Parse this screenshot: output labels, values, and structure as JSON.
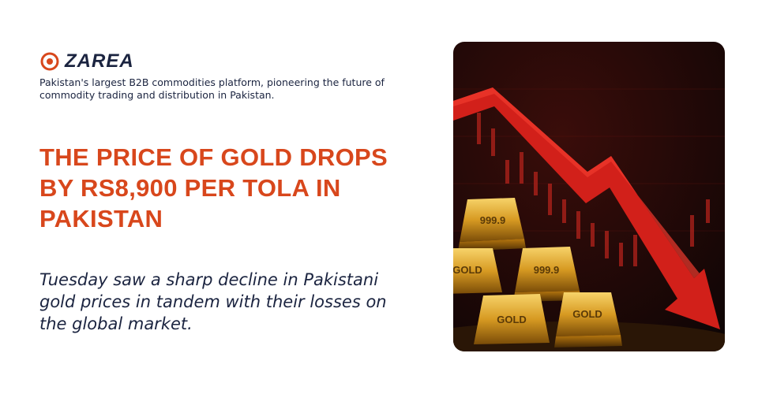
{
  "logo": {
    "name": "ZAREA"
  },
  "tagline": "Pakistan's largest B2B commodities platform, pioneering the future of commodity trading and distribution in Pakistan.",
  "headline": "THE PRICE OF GOLD DROPS BY RS8,900 PER TOLA IN PAKISTAN",
  "body": "Tuesday saw a sharp decline in Pakistani gold prices in tandem with their losses on the global market.",
  "image": {
    "bar_labels": [
      "999.9",
      "GOLD",
      "999.9",
      "GOLD",
      "GOLD"
    ]
  }
}
